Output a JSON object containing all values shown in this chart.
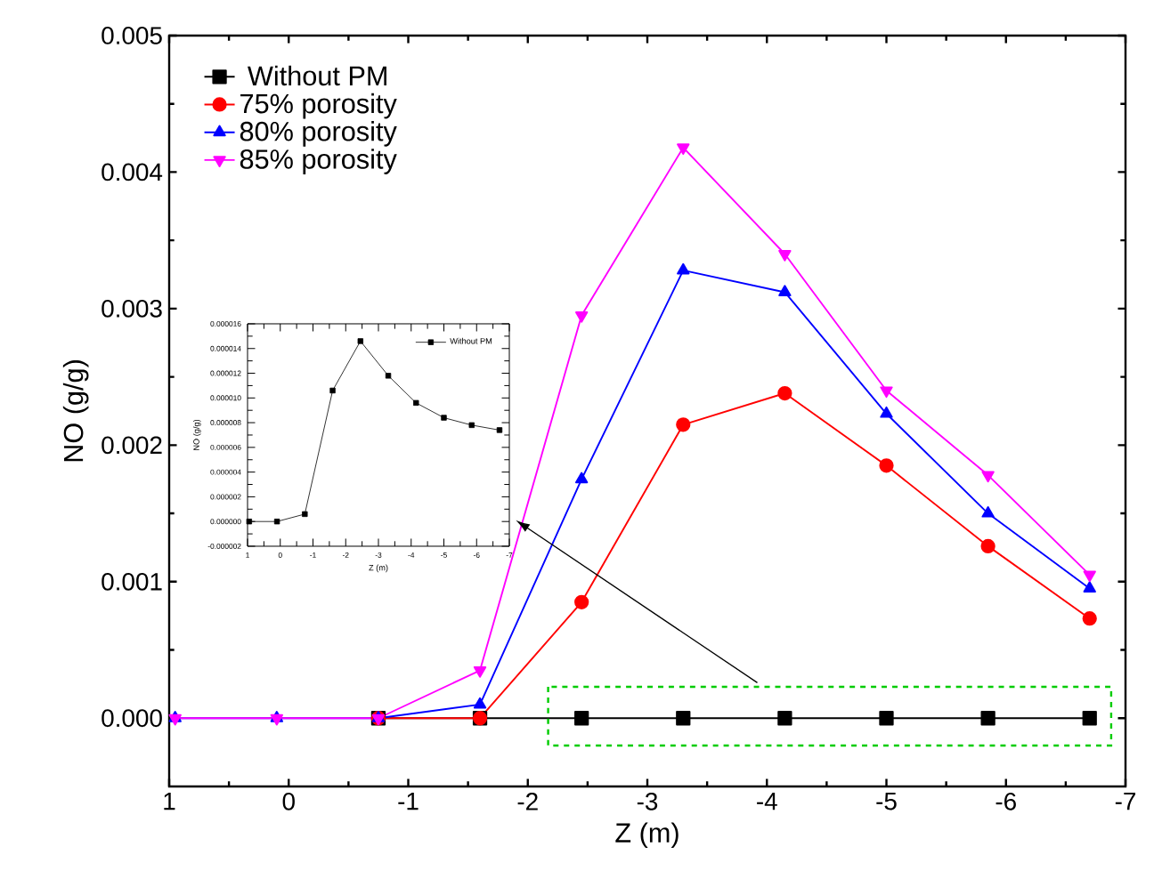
{
  "chart_data": [
    {
      "type": "line",
      "xlabel": "Z (m)",
      "ylabel": "NO (g/g)",
      "x": [
        0.95,
        0.1,
        -0.75,
        -1.6,
        -2.45,
        -3.3,
        -4.15,
        -5.0,
        -5.85,
        -6.7
      ],
      "series": [
        {
          "name": "Without PM",
          "color": "#000000",
          "marker": "square",
          "values": [
            null,
            null,
            0,
            0,
            0,
            0,
            0,
            0,
            0,
            0
          ]
        },
        {
          "name": "75% porosity",
          "color": "#ff0000",
          "marker": "circle",
          "values": [
            null,
            null,
            0,
            0,
            0.00085,
            0.00215,
            0.00238,
            0.00185,
            0.00126,
            0.00073
          ]
        },
        {
          "name": "80% porosity",
          "color": "#0000ff",
          "marker": "triangle",
          "values": [
            0,
            0,
            0,
            0.0001,
            0.00175,
            0.00328,
            0.00312,
            0.00223,
            0.0015,
            0.00095
          ]
        },
        {
          "name": "85% porosity",
          "color": "#ff00ff",
          "marker": "triangle-down",
          "values": [
            0,
            0,
            0,
            0.00035,
            0.00295,
            0.00418,
            0.0034,
            0.0024,
            0.00178,
            0.00105
          ]
        }
      ],
      "xlim": [
        1,
        -7
      ],
      "xticks": [
        1,
        0,
        -1,
        -2,
        -3,
        -4,
        -5,
        -6,
        -7
      ],
      "ylim": [
        -0.0005,
        0.005
      ],
      "yticks": [
        {
          "value": 0,
          "label": "0.000"
        },
        {
          "value": 0.001,
          "label": "0.001"
        },
        {
          "value": 0.002,
          "label": "0.002"
        },
        {
          "value": 0.003,
          "label": "0.003"
        },
        {
          "value": 0.004,
          "label": "0.004"
        },
        {
          "value": 0.005,
          "label": "0.005"
        }
      ],
      "legend": "top left"
    },
    {
      "type": "line",
      "xlabel": "Z (m)",
      "ylabel": "NO (g/g)",
      "x": [
        0.95,
        0.1,
        -0.75,
        -1.6,
        -2.45,
        -3.3,
        -4.15,
        -5.0,
        -5.85,
        -6.7
      ],
      "series": [
        {
          "name": "Without PM",
          "color": "#000000",
          "marker": "square",
          "values": [
            0,
            0,
            6e-07,
            1.06e-05,
            1.46e-05,
            1.18e-05,
            9.6e-06,
            8.4e-06,
            7.8e-06,
            7.4e-06
          ]
        }
      ],
      "xlim": [
        1,
        -7
      ],
      "xticks": [
        1,
        0,
        -1,
        -2,
        -3,
        -4,
        -5,
        -6,
        -7
      ],
      "ylim": [
        -2e-06,
        1.6e-05
      ],
      "yticks": [
        {
          "value": -2e-06,
          "label": "-0.000002"
        },
        {
          "value": 0,
          "label": "0.000000"
        },
        {
          "value": 2e-06,
          "label": "0.000002"
        },
        {
          "value": 4e-06,
          "label": "0.000004"
        },
        {
          "value": 6e-06,
          "label": "0.000006"
        },
        {
          "value": 8e-06,
          "label": "0.000008"
        },
        {
          "value": 1e-05,
          "label": "0.000010"
        },
        {
          "value": 1.2e-05,
          "label": "0.000012"
        },
        {
          "value": 1.4e-05,
          "label": "0.000014"
        },
        {
          "value": 1.6e-05,
          "label": "0.000016"
        }
      ],
      "legend": "top right"
    }
  ]
}
